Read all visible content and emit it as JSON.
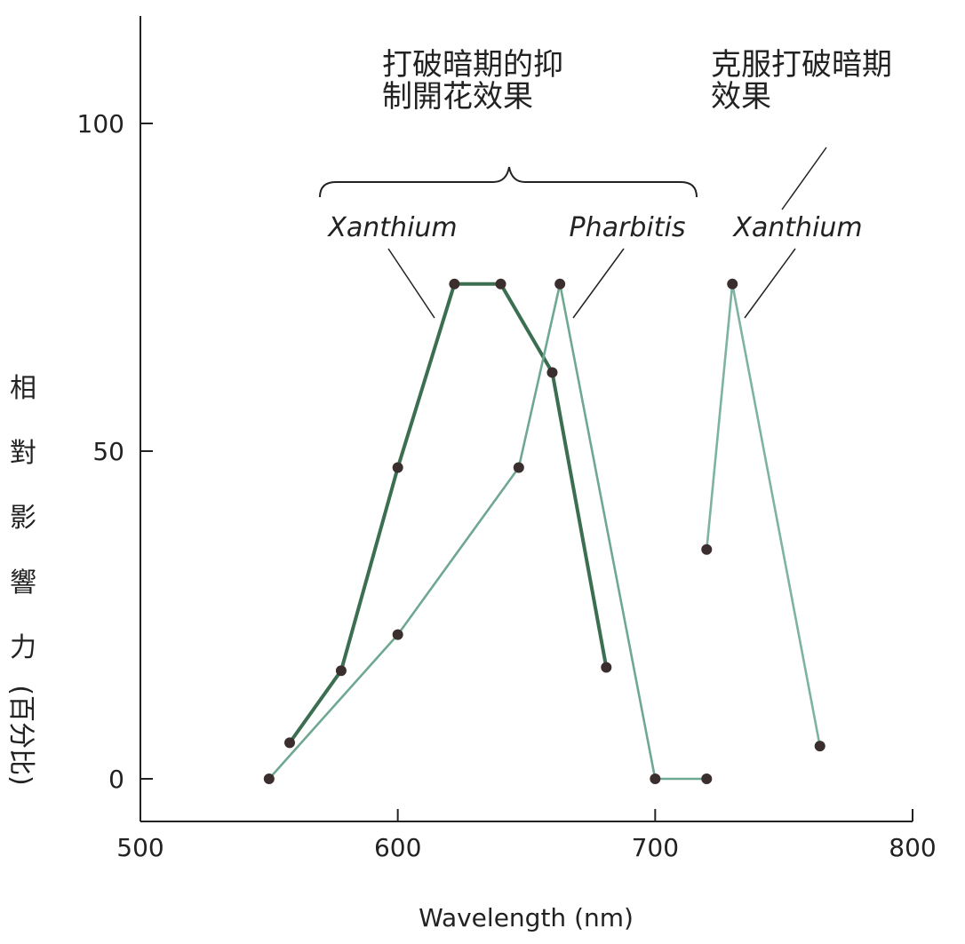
{
  "chart_data": {
    "type": "line",
    "xlabel": "Wavelength (nm)",
    "ylabel": [
      "相",
      "對",
      "影",
      "響",
      "力",
      "(百分比)"
    ],
    "xlim": [
      500,
      800
    ],
    "ylim": [
      0,
      100
    ],
    "xticks": [
      500,
      600,
      700,
      800
    ],
    "yticks": [
      0,
      50,
      100
    ],
    "grid": false,
    "series": [
      {
        "name": "Xanthium",
        "color": "#3c6e52",
        "points": [
          [
            558,
            5.5
          ],
          [
            578,
            16.5
          ],
          [
            600,
            47.5
          ],
          [
            622,
            75.5
          ],
          [
            640,
            75.5
          ],
          [
            660,
            62
          ],
          [
            681,
            17
          ]
        ]
      },
      {
        "name": "Pharbitis",
        "color": "#6fa891",
        "points": [
          [
            550,
            0
          ],
          [
            600,
            22
          ],
          [
            647,
            47.5
          ],
          [
            663,
            75.5
          ],
          [
            700,
            0
          ],
          [
            720,
            0
          ]
        ]
      },
      {
        "name": "Xanthium",
        "color": "#7db3a0",
        "points": [
          [
            720,
            35
          ],
          [
            730,
            75.5
          ],
          [
            764,
            5
          ]
        ]
      }
    ],
    "annotations": {
      "group_left": [
        "打破暗期的抑",
        "制開花效果"
      ],
      "group_right": [
        "克服打破暗期",
        "效果"
      ],
      "label_xanthium_left": "Xanthium",
      "label_pharbitis": "Pharbitis",
      "label_xanthium_right": "Xanthium"
    }
  }
}
